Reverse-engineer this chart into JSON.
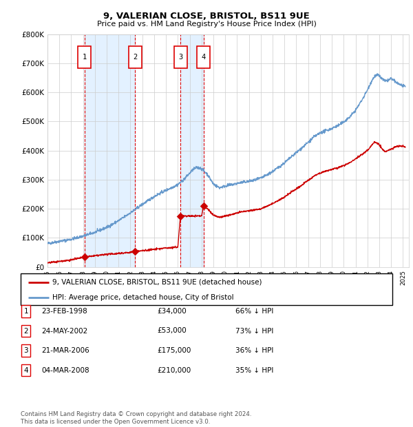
{
  "title": "9, VALERIAN CLOSE, BRISTOL, BS11 9UE",
  "subtitle": "Price paid vs. HM Land Registry's House Price Index (HPI)",
  "transactions": [
    {
      "num": 1,
      "date": "23-FEB-1998",
      "year": 1998.13,
      "price": 34000,
      "pct": "66% ↓ HPI"
    },
    {
      "num": 2,
      "date": "24-MAY-2002",
      "year": 2002.39,
      "price": 53000,
      "pct": "73% ↓ HPI"
    },
    {
      "num": 3,
      "date": "21-MAR-2006",
      "year": 2006.22,
      "price": 175000,
      "pct": "36% ↓ HPI"
    },
    {
      "num": 4,
      "date": "04-MAR-2008",
      "year": 2008.17,
      "price": 210000,
      "pct": "35% ↓ HPI"
    }
  ],
  "legend_red": "9, VALERIAN CLOSE, BRISTOL, BS11 9UE (detached house)",
  "legend_blue": "HPI: Average price, detached house, City of Bristol",
  "footer": "Contains HM Land Registry data © Crown copyright and database right 2024.\nThis data is licensed under the Open Government Licence v3.0.",
  "ylim": [
    0,
    800000
  ],
  "xlim_start": 1995.0,
  "xlim_end": 2025.5,
  "red_color": "#cc0000",
  "blue_color": "#6699cc",
  "bg_shade_color": "#ddeeff",
  "grid_color": "#cccccc",
  "vline_color": "#dd0000",
  "hpi_pts_x": [
    1995.0,
    1995.5,
    1996.0,
    1996.5,
    1997.0,
    1997.5,
    1998.0,
    1998.5,
    1999.0,
    1999.5,
    2000.0,
    2000.5,
    2001.0,
    2001.5,
    2002.0,
    2002.5,
    2003.0,
    2003.5,
    2004.0,
    2004.5,
    2005.0,
    2005.5,
    2006.0,
    2006.5,
    2007.0,
    2007.3,
    2007.6,
    2008.0,
    2008.5,
    2009.0,
    2009.5,
    2010.0,
    2010.5,
    2011.0,
    2011.5,
    2012.0,
    2012.5,
    2013.0,
    2013.5,
    2014.0,
    2014.5,
    2015.0,
    2015.5,
    2016.0,
    2016.5,
    2017.0,
    2017.5,
    2018.0,
    2018.5,
    2019.0,
    2019.5,
    2020.0,
    2020.5,
    2021.0,
    2021.3,
    2021.6,
    2022.0,
    2022.3,
    2022.6,
    2022.9,
    2023.2,
    2023.5,
    2023.8,
    2024.0,
    2024.3,
    2024.6,
    2025.0,
    2025.2
  ],
  "hpi_pts_y": [
    80000,
    84000,
    88000,
    91000,
    95000,
    100000,
    106000,
    112000,
    119000,
    127000,
    136000,
    147000,
    159000,
    172000,
    186000,
    200000,
    215000,
    228000,
    242000,
    253000,
    263000,
    273000,
    283000,
    300000,
    322000,
    335000,
    342000,
    338000,
    318000,
    285000,
    272000,
    278000,
    282000,
    287000,
    291000,
    294000,
    298000,
    305000,
    315000,
    328000,
    342000,
    358000,
    375000,
    393000,
    410000,
    428000,
    447000,
    460000,
    468000,
    476000,
    485000,
    498000,
    515000,
    538000,
    558000,
    578000,
    608000,
    635000,
    655000,
    660000,
    648000,
    638000,
    642000,
    648000,
    638000,
    630000,
    622000,
    618000
  ],
  "red_pts_x": [
    1995.0,
    1997.0,
    1998.13,
    1998.14,
    2000.0,
    2002.0,
    2002.39,
    2002.4,
    2004.0,
    2005.0,
    2006.0,
    2006.22,
    2006.23,
    2006.5,
    2007.0,
    2007.5,
    2008.0,
    2008.17,
    2008.18,
    2008.5,
    2009.0,
    2009.5,
    2010.0,
    2010.5,
    2011.0,
    2011.5,
    2012.0,
    2012.5,
    2013.0,
    2013.5,
    2014.0,
    2014.5,
    2015.0,
    2015.5,
    2016.0,
    2016.5,
    2017.0,
    2017.5,
    2018.0,
    2018.5,
    2019.0,
    2019.5,
    2020.0,
    2020.5,
    2021.0,
    2021.5,
    2022.0,
    2022.3,
    2022.6,
    2022.9,
    2023.2,
    2023.5,
    2024.0,
    2024.5,
    2025.0,
    2025.2
  ],
  "red_pts_y": [
    14000,
    24000,
    34000,
    34000,
    43000,
    50000,
    53000,
    53000,
    60000,
    65000,
    68000,
    175000,
    175000,
    175000,
    175000,
    175000,
    175000,
    210000,
    210000,
    200000,
    178000,
    170000,
    175000,
    180000,
    185000,
    190000,
    193000,
    196000,
    200000,
    208000,
    218000,
    228000,
    240000,
    255000,
    268000,
    282000,
    298000,
    312000,
    322000,
    330000,
    335000,
    340000,
    348000,
    358000,
    372000,
    385000,
    400000,
    415000,
    430000,
    425000,
    408000,
    395000,
    405000,
    415000,
    415000,
    412000
  ]
}
